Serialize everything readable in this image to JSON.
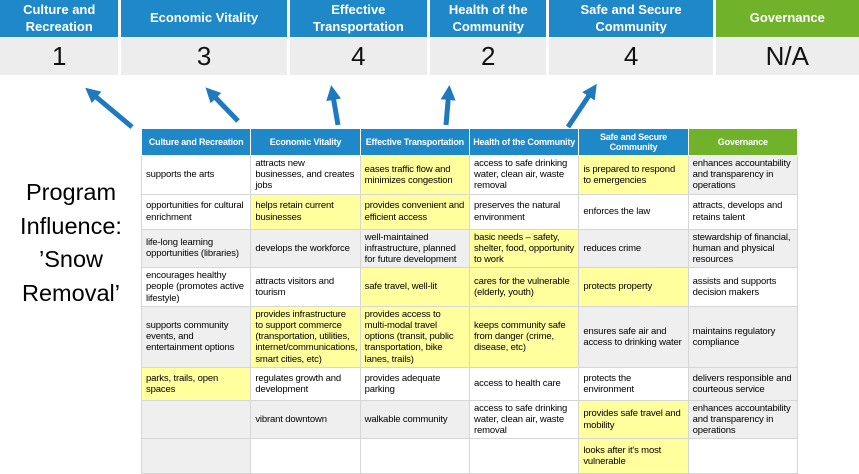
{
  "title": "Program Influence: ’Snow Removal’",
  "colors": {
    "header_blue": "#1E88C8",
    "header_green": "#70B32B",
    "score_bg": "#EDEDED",
    "highlight_yellow": "#FFFF9E",
    "cell_gray": "#EFEFEF",
    "arrow_blue": "#1E79BE"
  },
  "icons": {
    "influence_arrow": "arrow-up"
  },
  "summary": {
    "columns": [
      {
        "label": "Culture and Recreation",
        "score": "1",
        "theme": "blue"
      },
      {
        "label": "Economic Vitality",
        "score": "3",
        "theme": "blue"
      },
      {
        "label": "Effective Transportation",
        "score": "4",
        "theme": "blue"
      },
      {
        "label": "Health of the Community",
        "score": "2",
        "theme": "blue"
      },
      {
        "label": "Safe and Secure Community",
        "score": "4",
        "theme": "blue"
      },
      {
        "label": "Governance",
        "score": "N/A",
        "theme": "green"
      }
    ]
  },
  "matrix": {
    "headers": [
      {
        "label": "Culture and Recreation",
        "theme": "blue"
      },
      {
        "label": "Economic Vitality",
        "theme": "blue"
      },
      {
        "label": "Effective Transportation",
        "theme": "blue"
      },
      {
        "label": "Health of the Community",
        "theme": "blue"
      },
      {
        "label": "Safe and Secure Community",
        "theme": "blue"
      },
      {
        "label": "Governance",
        "theme": "green"
      }
    ],
    "rows": [
      [
        {
          "text": "supports the arts",
          "bg": "white"
        },
        {
          "text": "attracts new businesses, and creates jobs",
          "bg": "white"
        },
        {
          "text": "eases traffic flow and minimizes congestion",
          "bg": "yellow"
        },
        {
          "text": "access to safe drinking water, clean air, waste removal",
          "bg": "white"
        },
        {
          "text": "is prepared to respond to emergencies",
          "bg": "yellow"
        },
        {
          "text": "enhances accountability and transparency in operations",
          "bg": "gray"
        }
      ],
      [
        {
          "text": "opportunities for cultural enrichment",
          "bg": "white"
        },
        {
          "text": "helps retain current businesses",
          "bg": "yellow"
        },
        {
          "text": "provides convenient and efficient access",
          "bg": "yellow"
        },
        {
          "text": "preserves the natural environment",
          "bg": "white"
        },
        {
          "text": "enforces the law",
          "bg": "white"
        },
        {
          "text": "attracts, develops and retains talent",
          "bg": "white"
        }
      ],
      [
        {
          "text": "life-long learning opportunities (libraries)",
          "bg": "gray"
        },
        {
          "text": "develops the workforce",
          "bg": "gray"
        },
        {
          "text": "well-maintained infrastructure, planned for future development",
          "bg": "gray"
        },
        {
          "text": "basic needs – safety, shelter, food, opportunity to work",
          "bg": "yellow"
        },
        {
          "text": "reduces crime",
          "bg": "gray"
        },
        {
          "text": "stewardship of financial, human and physical resources",
          "bg": "gray"
        }
      ],
      [
        {
          "text": "encourages healthy people (promotes active lifestyle)",
          "bg": "white"
        },
        {
          "text": "attracts visitors and tourism",
          "bg": "white"
        },
        {
          "text": "safe travel, well-lit",
          "bg": "yellow"
        },
        {
          "text": "cares for the vulnerable (elderly, youth)",
          "bg": "yellow"
        },
        {
          "text": "protects property",
          "bg": "yellow"
        },
        {
          "text": "assists and supports decision makers",
          "bg": "white"
        }
      ],
      [
        {
          "text": "supports community events, and entertainment options",
          "bg": "gray"
        },
        {
          "text": "provides infrastructure to support commerce (transportation, utilities, internet/communications, smart cities, etc)",
          "bg": "yellow"
        },
        {
          "text": "provides access to multi-modal travel options (transit, public transportation, bike lanes, trails)",
          "bg": "yellow"
        },
        {
          "text": "keeps community safe from danger (crime, disease, etc)",
          "bg": "yellow"
        },
        {
          "text": "ensures safe air and access to drinking water",
          "bg": "gray"
        },
        {
          "text": "maintains regulatory compliance",
          "bg": "gray"
        }
      ],
      [
        {
          "text": "parks, trails, open spaces",
          "bg": "yellow"
        },
        {
          "text": "regulates growth and development",
          "bg": "white"
        },
        {
          "text": "provides adequate parking",
          "bg": "white"
        },
        {
          "text": "access to health care",
          "bg": "white"
        },
        {
          "text": "protects the environment",
          "bg": "white"
        },
        {
          "text": "delivers responsible and courteous service",
          "bg": "gray"
        }
      ],
      [
        {
          "text": "",
          "bg": "gray"
        },
        {
          "text": "vibrant downtown",
          "bg": "gray"
        },
        {
          "text": "walkable community",
          "bg": "gray"
        },
        {
          "text": "access to safe drinking water, clean air, waste removal",
          "bg": "white"
        },
        {
          "text": "provides safe travel and mobility",
          "bg": "yellow"
        },
        {
          "text": "enhances accountability and transparency in operations",
          "bg": "gray"
        }
      ],
      [
        {
          "text": "",
          "bg": "gray"
        },
        {
          "text": "",
          "bg": "white"
        },
        {
          "text": "",
          "bg": "white"
        },
        {
          "text": "",
          "bg": "white"
        },
        {
          "text": "looks after it's most vulnerable",
          "bg": "yellow"
        },
        {
          "text": "",
          "bg": "white"
        }
      ]
    ]
  }
}
